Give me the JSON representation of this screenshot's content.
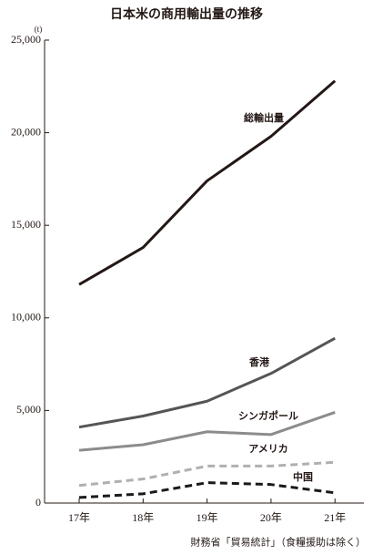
{
  "chart_data": {
    "type": "line",
    "title": "日本米の商用輸出量の推移",
    "y_unit": "(t)",
    "source": "財務省「貿易統計」（食糧援助は除く）",
    "categories": [
      "17年",
      "18年",
      "19年",
      "20年",
      "21年"
    ],
    "series": [
      {
        "name": "総輸出量",
        "color": "#231815",
        "dashed": false,
        "values": [
          11800,
          13800,
          17400,
          19800,
          22800
        ]
      },
      {
        "name": "香港",
        "color": "#555555",
        "dashed": false,
        "values": [
          4100,
          4700,
          5500,
          7000,
          8900
        ]
      },
      {
        "name": "シンガポール",
        "color": "#8c8c8c",
        "dashed": false,
        "values": [
          2850,
          3150,
          3850,
          3700,
          4900
        ]
      },
      {
        "name": "アメリカ",
        "color": "#b0b0b0",
        "dashed": true,
        "values": [
          950,
          1300,
          2000,
          2000,
          2200
        ]
      },
      {
        "name": "中国",
        "color": "#1a1a1a",
        "dashed": true,
        "values": [
          300,
          500,
          1100,
          1000,
          550
        ]
      }
    ],
    "ylim": [
      0,
      25000
    ],
    "yticks": [
      0,
      {
        "value": 5000,
        "label": "5,000"
      },
      {
        "value": 10000,
        "label": "10,000"
      },
      {
        "value": 15000,
        "label": "15,000"
      },
      {
        "value": 20000,
        "label": "20,000"
      },
      {
        "value": 25000,
        "label": "25,000"
      }
    ]
  }
}
